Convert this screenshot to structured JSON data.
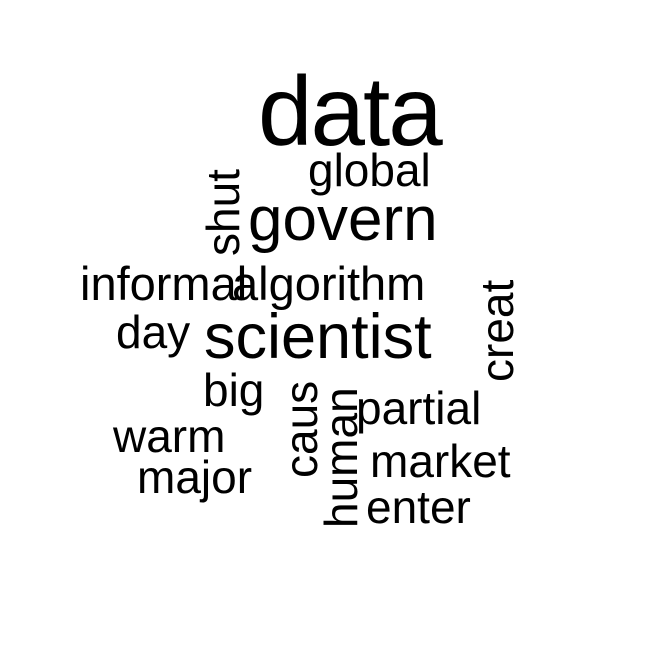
{
  "word_cloud": {
    "text_color": "#000000",
    "background_color": "#ffffff",
    "words": [
      {
        "text": "data",
        "rank": 1,
        "orientation": "horizontal"
      },
      {
        "text": "global",
        "rank": 3,
        "orientation": "horizontal"
      },
      {
        "text": "shut",
        "rank": 3,
        "orientation": "vertical"
      },
      {
        "text": "govern",
        "rank": 2,
        "orientation": "horizontal"
      },
      {
        "text": "informal",
        "rank": 3,
        "orientation": "horizontal"
      },
      {
        "text": "algorithm",
        "rank": 3,
        "orientation": "horizontal"
      },
      {
        "text": "creat",
        "rank": 3,
        "orientation": "vertical"
      },
      {
        "text": "day",
        "rank": 3,
        "orientation": "horizontal"
      },
      {
        "text": "scientist",
        "rank": 2,
        "orientation": "horizontal"
      },
      {
        "text": "big",
        "rank": 3,
        "orientation": "horizontal"
      },
      {
        "text": "caus",
        "rank": 3,
        "orientation": "vertical"
      },
      {
        "text": "human",
        "rank": 3,
        "orientation": "vertical"
      },
      {
        "text": "partial",
        "rank": 3,
        "orientation": "horizontal"
      },
      {
        "text": "warm",
        "rank": 3,
        "orientation": "horizontal"
      },
      {
        "text": "market",
        "rank": 3,
        "orientation": "horizontal"
      },
      {
        "text": "major",
        "rank": 3,
        "orientation": "horizontal"
      },
      {
        "text": "enter",
        "rank": 3,
        "orientation": "horizontal"
      }
    ]
  }
}
